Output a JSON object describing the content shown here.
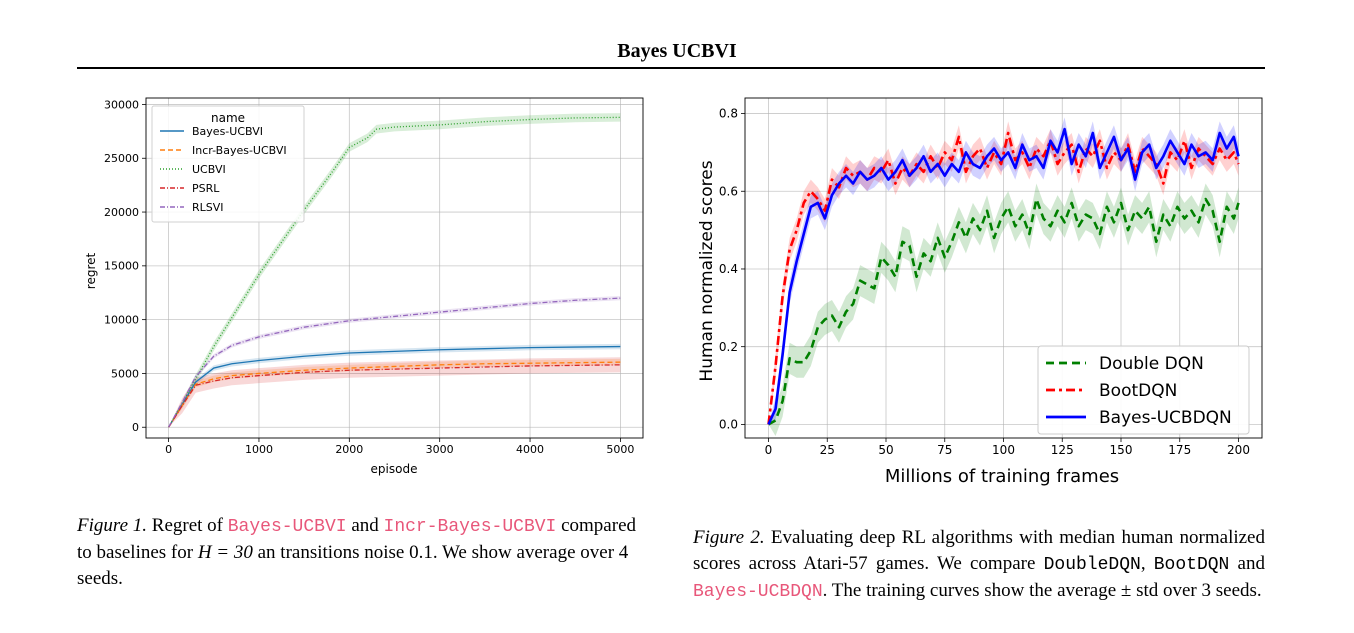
{
  "header": {
    "title": "Bayes UCBVI"
  },
  "figure1": {
    "caption": {
      "lead": "Figure 1.",
      "t1": " Regret of ",
      "code1": "Bayes-UCBVI",
      "t2": " and ",
      "code2": "Incr-Bayes-UCBVI",
      "t3": " compared to baselines for ",
      "math1": "H = 30",
      "t4": " an transitions noise ",
      "math2": "0.1",
      "t5": ". We show average over ",
      "math3": "4",
      "t6": " seeds."
    },
    "chart_data": {
      "type": "line",
      "xlabel": "episode",
      "ylabel": "regret",
      "xlim": [
        -250,
        5250
      ],
      "ylim": [
        -1000,
        30600
      ],
      "xticks": [
        0,
        1000,
        2000,
        3000,
        4000,
        5000
      ],
      "yticks": [
        0,
        5000,
        10000,
        15000,
        20000,
        25000,
        30000
      ],
      "grid": true,
      "legend": {
        "title": "name",
        "placement": "top-left"
      },
      "series": [
        {
          "name": "Bayes-UCBVI",
          "color": "#1f77b4",
          "style": "solid",
          "band": 250,
          "x": [
            0,
            150,
            300,
            500,
            700,
            1000,
            1500,
            2000,
            2500,
            3000,
            3500,
            4000,
            4500,
            5000
          ],
          "y": [
            0,
            2100,
            4200,
            5500,
            5900,
            6200,
            6600,
            6900,
            7050,
            7200,
            7300,
            7400,
            7450,
            7500
          ]
        },
        {
          "name": "Incr-Bayes-UCBVI",
          "color": "#ff7f0e",
          "style": "dashed",
          "band": 300,
          "x": [
            0,
            150,
            300,
            500,
            700,
            1000,
            1500,
            2000,
            2500,
            3000,
            3500,
            4000,
            4500,
            5000
          ],
          "y": [
            0,
            2000,
            4000,
            4500,
            4800,
            5000,
            5300,
            5500,
            5650,
            5800,
            5900,
            5950,
            6000,
            6050
          ]
        },
        {
          "name": "UCBVI",
          "color": "#2ca02c",
          "style": "dotted",
          "band": 400,
          "x": [
            0,
            300,
            500,
            1000,
            1500,
            1800,
            2000,
            2200,
            2300,
            2500,
            3000,
            3500,
            4000,
            4500,
            5000
          ],
          "y": [
            0,
            4500,
            7500,
            14200,
            20200,
            23600,
            26000,
            26900,
            27700,
            27900,
            28100,
            28400,
            28600,
            28750,
            28800
          ]
        },
        {
          "name": "PSRL",
          "color": "#d62728",
          "style": "dashdot",
          "band": 700,
          "x": [
            0,
            150,
            300,
            500,
            700,
            1000,
            1500,
            2000,
            2500,
            3000,
            3500,
            4000,
            4500,
            5000
          ],
          "y": [
            0,
            2000,
            3900,
            4300,
            4600,
            4800,
            5100,
            5300,
            5400,
            5500,
            5600,
            5700,
            5750,
            5800
          ]
        },
        {
          "name": "RLSVI",
          "color": "#9467bd",
          "style": "dashdot",
          "band": 200,
          "x": [
            0,
            150,
            300,
            500,
            700,
            1000,
            1500,
            2000,
            2500,
            3000,
            3500,
            4000,
            4500,
            5000
          ],
          "y": [
            0,
            2300,
            4700,
            6600,
            7600,
            8400,
            9300,
            9900,
            10300,
            10700,
            11100,
            11500,
            11800,
            12000
          ]
        }
      ]
    }
  },
  "figure2": {
    "caption": {
      "lead": "Figure 2.",
      "t1": " Evaluating deep RL algorithms with median human normalized scores across Atari-57 games. We compare ",
      "code1": "DoubleDQN",
      "t2": ", ",
      "code2": "BootDQN",
      "t3": " and ",
      "code3": "Bayes-UCBDQN",
      "t4": ". The training curves show the average ± std over 3 seeds."
    },
    "chart_data": {
      "type": "line",
      "xlabel": "Millions of training frames",
      "ylabel": "Human normalized scores",
      "xlim": [
        -10,
        210
      ],
      "ylim": [
        -0.035,
        0.84
      ],
      "xticks": [
        0,
        25,
        50,
        75,
        100,
        125,
        150,
        175,
        200
      ],
      "yticks": [
        0.0,
        0.2,
        0.4,
        0.6,
        0.8
      ],
      "yticklabels": [
        "0.0",
        "0.2",
        "0.4",
        "0.6",
        "0.8"
      ],
      "grid": true,
      "legend": {
        "placement": "bottom-right"
      },
      "series": [
        {
          "name": "Double DQN",
          "color": "#008000",
          "style": "dashed",
          "band": 0.04,
          "x": [
            0,
            3,
            6,
            9,
            12,
            15,
            18,
            21,
            24,
            27,
            30,
            33,
            36,
            39,
            42,
            45,
            48,
            51,
            54,
            57,
            60,
            63,
            66,
            69,
            72,
            75,
            78,
            81,
            84,
            87,
            90,
            93,
            96,
            99,
            102,
            105,
            108,
            111,
            114,
            117,
            120,
            123,
            126,
            129,
            132,
            135,
            138,
            141,
            144,
            147,
            150,
            153,
            156,
            159,
            162,
            165,
            168,
            171,
            174,
            177,
            180,
            183,
            186,
            189,
            192,
            195,
            198,
            200
          ],
          "y": [
            0.0,
            0.01,
            0.06,
            0.17,
            0.16,
            0.16,
            0.19,
            0.25,
            0.27,
            0.28,
            0.25,
            0.29,
            0.31,
            0.37,
            0.36,
            0.35,
            0.43,
            0.41,
            0.38,
            0.47,
            0.46,
            0.38,
            0.44,
            0.42,
            0.48,
            0.43,
            0.47,
            0.52,
            0.48,
            0.53,
            0.5,
            0.55,
            0.48,
            0.53,
            0.56,
            0.51,
            0.54,
            0.49,
            0.58,
            0.53,
            0.51,
            0.55,
            0.52,
            0.57,
            0.51,
            0.54,
            0.53,
            0.49,
            0.56,
            0.52,
            0.57,
            0.5,
            0.55,
            0.53,
            0.56,
            0.47,
            0.54,
            0.51,
            0.56,
            0.53,
            0.55,
            0.52,
            0.58,
            0.55,
            0.47,
            0.56,
            0.53,
            0.57
          ]
        },
        {
          "name": "BootDQN",
          "color": "#ff0000",
          "style": "dashdot",
          "band": 0.03,
          "x": [
            0,
            3,
            6,
            9,
            12,
            15,
            18,
            21,
            24,
            27,
            30,
            33,
            36,
            39,
            42,
            45,
            48,
            51,
            54,
            57,
            60,
            63,
            66,
            69,
            72,
            75,
            78,
            81,
            84,
            87,
            90,
            93,
            96,
            99,
            102,
            105,
            108,
            111,
            114,
            117,
            120,
            123,
            126,
            129,
            132,
            135,
            138,
            141,
            144,
            147,
            150,
            153,
            156,
            159,
            162,
            165,
            168,
            171,
            174,
            177,
            180,
            183,
            186,
            189,
            192,
            195,
            198,
            200
          ],
          "y": [
            0.0,
            0.15,
            0.33,
            0.45,
            0.5,
            0.57,
            0.6,
            0.58,
            0.55,
            0.63,
            0.61,
            0.66,
            0.64,
            0.65,
            0.63,
            0.66,
            0.65,
            0.68,
            0.62,
            0.66,
            0.64,
            0.67,
            0.65,
            0.69,
            0.66,
            0.7,
            0.68,
            0.74,
            0.65,
            0.69,
            0.71,
            0.66,
            0.7,
            0.67,
            0.75,
            0.68,
            0.7,
            0.66,
            0.71,
            0.69,
            0.73,
            0.67,
            0.7,
            0.72,
            0.65,
            0.71,
            0.69,
            0.73,
            0.66,
            0.7,
            0.68,
            0.72,
            0.65,
            0.71,
            0.69,
            0.67,
            0.62,
            0.7,
            0.68,
            0.73,
            0.66,
            0.71,
            0.69,
            0.67,
            0.71,
            0.68,
            0.7,
            0.67
          ]
        },
        {
          "name": "Bayes-UCBDQN",
          "color": "#0000ff",
          "style": "solid",
          "band": 0.03,
          "x": [
            0,
            3,
            6,
            9,
            12,
            15,
            18,
            21,
            24,
            27,
            30,
            33,
            36,
            39,
            42,
            45,
            48,
            51,
            54,
            57,
            60,
            63,
            66,
            69,
            72,
            75,
            78,
            81,
            84,
            87,
            90,
            93,
            96,
            99,
            102,
            105,
            108,
            111,
            114,
            117,
            120,
            123,
            126,
            129,
            132,
            135,
            138,
            141,
            144,
            147,
            150,
            153,
            156,
            159,
            162,
            165,
            168,
            171,
            174,
            177,
            180,
            183,
            186,
            189,
            192,
            195,
            198,
            200
          ],
          "y": [
            0.0,
            0.04,
            0.18,
            0.34,
            0.42,
            0.49,
            0.56,
            0.57,
            0.53,
            0.59,
            0.62,
            0.64,
            0.62,
            0.65,
            0.63,
            0.64,
            0.66,
            0.63,
            0.65,
            0.68,
            0.64,
            0.66,
            0.69,
            0.65,
            0.67,
            0.64,
            0.67,
            0.65,
            0.7,
            0.67,
            0.66,
            0.69,
            0.71,
            0.68,
            0.7,
            0.66,
            0.72,
            0.68,
            0.69,
            0.66,
            0.73,
            0.7,
            0.76,
            0.67,
            0.72,
            0.69,
            0.75,
            0.66,
            0.7,
            0.74,
            0.68,
            0.71,
            0.63,
            0.7,
            0.72,
            0.66,
            0.69,
            0.73,
            0.7,
            0.67,
            0.72,
            0.69,
            0.7,
            0.68,
            0.75,
            0.71,
            0.74,
            0.69
          ]
        }
      ]
    }
  }
}
